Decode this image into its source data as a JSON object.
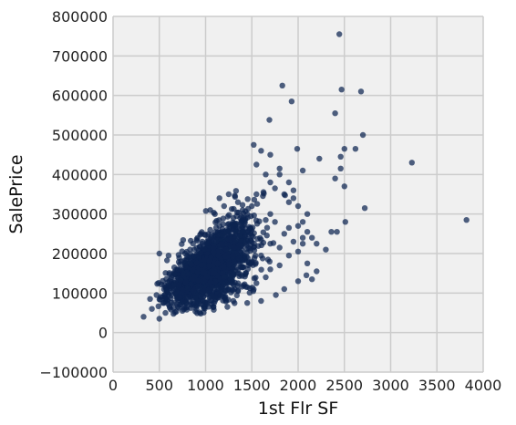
{
  "chart_data": {
    "type": "scatter",
    "title": "",
    "xlabel": "1st Flr SF",
    "ylabel": "SalePrice",
    "xlim": [
      0,
      4000
    ],
    "ylim": [
      -100000,
      800000
    ],
    "x_ticks": [
      0,
      500,
      1000,
      1500,
      2000,
      2500,
      3000,
      3500,
      4000
    ],
    "y_ticks": [
      -100000,
      0,
      100000,
      200000,
      300000,
      400000,
      500000,
      600000,
      700000,
      800000
    ],
    "grid": true,
    "legend": "none",
    "point_color": "#0c2451",
    "background_color": "#f0f0f0",
    "grid_color": "#cccccc",
    "points": [
      [
        2445,
        755000
      ],
      [
        2470,
        615000
      ],
      [
        2680,
        610000
      ],
      [
        1830,
        625000
      ],
      [
        1930,
        585000
      ],
      [
        2400,
        555000
      ],
      [
        1690,
        538000
      ],
      [
        2700,
        500000
      ],
      [
        3230,
        430000
      ],
      [
        3820,
        285000
      ],
      [
        2720,
        315000
      ],
      [
        2500,
        465000
      ],
      [
        2620,
        465000
      ],
      [
        1520,
        475000
      ],
      [
        1990,
        465000
      ],
      [
        2460,
        445000
      ],
      [
        2230,
        440000
      ],
      [
        2460,
        415000
      ],
      [
        2400,
        390000
      ],
      [
        2500,
        370000
      ],
      [
        2510,
        280000
      ],
      [
        2420,
        255000
      ],
      [
        2360,
        255000
      ],
      [
        2100,
        255000
      ],
      [
        2050,
        240000
      ],
      [
        2150,
        240000
      ],
      [
        2200,
        225000
      ],
      [
        2300,
        210000
      ],
      [
        2000,
        205000
      ],
      [
        2100,
        175000
      ],
      [
        2090,
        145000
      ],
      [
        2200,
        155000
      ],
      [
        2000,
        130000
      ],
      [
        2150,
        135000
      ],
      [
        1850,
        110000
      ],
      [
        1760,
        95000
      ],
      [
        1600,
        80000
      ],
      [
        1450,
        75000
      ],
      [
        1300,
        80000
      ],
      [
        1800,
        400000
      ],
      [
        1900,
        380000
      ],
      [
        1950,
        360000
      ],
      [
        1850,
        350000
      ],
      [
        1900,
        330000
      ],
      [
        2050,
        410000
      ],
      [
        1700,
        450000
      ],
      [
        1800,
        415000
      ],
      [
        1650,
        400000
      ],
      [
        1600,
        460000
      ],
      [
        1550,
        425000
      ],
      [
        1700,
        380000
      ],
      [
        1750,
        365000
      ],
      [
        1950,
        340000
      ],
      [
        2000,
        320000
      ],
      [
        2100,
        300000
      ],
      [
        2050,
        280000
      ],
      [
        2000,
        270000
      ],
      [
        1900,
        265000
      ],
      [
        1850,
        250000
      ],
      [
        1950,
        230000
      ],
      [
        2050,
        225000
      ],
      [
        1700,
        300000
      ],
      [
        1750,
        280000
      ],
      [
        1650,
        285000
      ],
      [
        1550,
        350000
      ],
      [
        1500,
        320000
      ],
      [
        1450,
        300000
      ],
      [
        1400,
        310000
      ],
      [
        1350,
        330000
      ],
      [
        1250,
        350000
      ],
      [
        1200,
        320000
      ],
      [
        1150,
        340000
      ],
      [
        1100,
        300000
      ],
      [
        1050,
        310000
      ],
      [
        1300,
        290000
      ],
      [
        500,
        200000
      ],
      [
        600,
        195000
      ],
      [
        330,
        40000
      ],
      [
        500,
        35000
      ],
      [
        420,
        60000
      ],
      [
        540,
        75000
      ],
      [
        400,
        85000
      ],
      [
        470,
        95000
      ],
      [
        580,
        105000
      ],
      [
        610,
        130000
      ],
      [
        650,
        145000
      ],
      [
        700,
        160000
      ],
      [
        600,
        120000
      ],
      [
        750,
        55000
      ],
      [
        700,
        65000
      ],
      [
        900,
        60000
      ],
      [
        1000,
        75000
      ],
      [
        1100,
        90000
      ],
      [
        850,
        70000
      ],
      [
        950,
        250000
      ],
      [
        1050,
        260000
      ],
      [
        1150,
        270000
      ],
      [
        1250,
        275000
      ],
      [
        1400,
        255000
      ],
      [
        1500,
        245000
      ],
      [
        1600,
        235000
      ],
      [
        1700,
        225000
      ],
      [
        1800,
        215000
      ],
      [
        1600,
        195000
      ],
      [
        1500,
        180000
      ],
      [
        1400,
        165000
      ],
      [
        1300,
        150000
      ],
      [
        1200,
        140000
      ],
      [
        1700,
        160000
      ],
      [
        1800,
        170000
      ],
      [
        1650,
        140000
      ],
      [
        1550,
        125000
      ],
      [
        1450,
        115000
      ],
      [
        1350,
        105000
      ],
      [
        1900,
        195000
      ]
    ],
    "cloud_center": [
      1050,
      165000
    ],
    "cloud_spread": [
      230,
      40000
    ]
  }
}
